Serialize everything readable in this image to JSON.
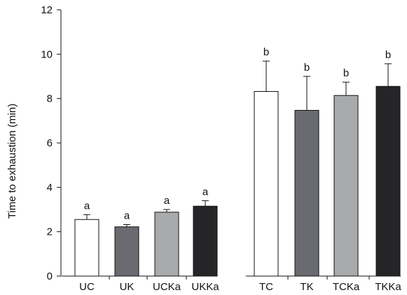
{
  "chart_data": {
    "type": "bar",
    "title": "",
    "xlabel": "",
    "ylabel": "Time to exhaustion (min)",
    "ylim": [
      0,
      12
    ],
    "yticks": [
      0,
      2,
      4,
      6,
      8,
      10,
      12
    ],
    "grid": false,
    "legend": "none",
    "groups": [
      {
        "bars": [
          {
            "category": "UC",
            "value": 2.55,
            "error": 0.22,
            "letter": "a",
            "color": "#ffffff"
          },
          {
            "category": "UK",
            "value": 2.22,
            "error": 0.1,
            "letter": "a",
            "color": "#6a6b70"
          },
          {
            "category": "UCKa",
            "value": 2.88,
            "error": 0.12,
            "letter": "a",
            "color": "#a9aaac"
          },
          {
            "category": "UKKa",
            "value": 3.15,
            "error": 0.25,
            "letter": "a",
            "color": "#252527"
          }
        ]
      },
      {
        "bars": [
          {
            "category": "TC",
            "value": 8.32,
            "error": 1.37,
            "letter": "b",
            "color": "#ffffff"
          },
          {
            "category": "TK",
            "value": 7.47,
            "error": 1.53,
            "letter": "b",
            "color": "#6a6b70"
          },
          {
            "category": "TCKa",
            "value": 8.14,
            "error": 0.6,
            "letter": "b",
            "color": "#a9aaac"
          },
          {
            "category": "TKKa",
            "value": 8.55,
            "error": 1.02,
            "letter": "b",
            "color": "#252527"
          }
        ]
      }
    ]
  }
}
